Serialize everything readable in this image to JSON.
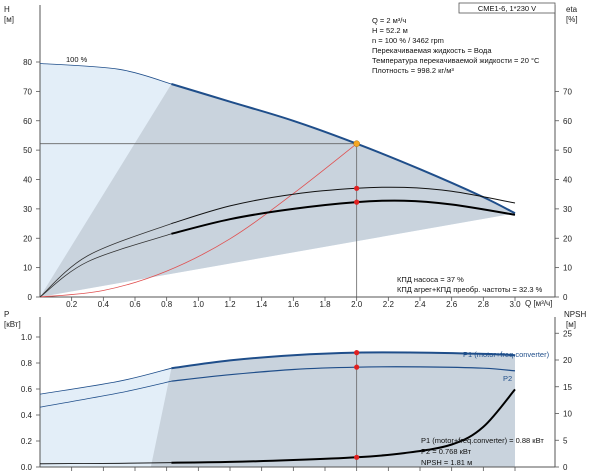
{
  "header": {
    "model_label": "CME1-6, 1*230 V"
  },
  "colors": {
    "light_region": "#e3eef8",
    "gray_region": "#c9d3dd",
    "curve_blue": "#1f4e8a",
    "system_curve": "#e05050",
    "op_point": "#f5a623",
    "point_red": "#e02020",
    "axis": "#555555"
  },
  "info": {
    "lines": [
      "Q = 2 м³/ч",
      "H = 52.2 м",
      "n = 100 % / 3462 rpm",
      "Перекачиваемая жидкость = Вода",
      "Температура перекачиваемой жидкости = 20 °C",
      "Плотность = 998.2 кг/м³"
    ]
  },
  "upper_notes": [
    "КПД насоса = 37 %",
    "КПД агрег+КПД преобр. частоты = 32.3 %"
  ],
  "lower_notes": [
    "P1 (motor+freq.converter) = 0.88 кВт",
    "P2 = 0.768 кВт",
    "NPSH = 1.81 м"
  ],
  "speed_label": "100 %",
  "chart_data": [
    {
      "type": "line",
      "title": "",
      "xlabel": "Q [м³/ч]",
      "ylabel_left": "H [м]",
      "ylabel_right": "eta [%]",
      "xlim": [
        0,
        3.1
      ],
      "ylim": [
        0,
        85
      ],
      "x_ticks": [
        "0.2",
        "0.4",
        "0.6",
        "0.8",
        "1.0",
        "1.2",
        "1.4",
        "1.6",
        "1.8",
        "2.0",
        "2.2",
        "2.4",
        "2.6",
        "2.8",
        "3.0"
      ],
      "y_ticks": [
        "0",
        "10",
        "20",
        "30",
        "40",
        "50",
        "60",
        "70",
        "80"
      ],
      "y2_ticks": [
        "0",
        "10",
        "20",
        "30",
        "40",
        "50",
        "60",
        "70"
      ],
      "x_tick_values": [
        0.2,
        0.4,
        0.6,
        0.8,
        1.0,
        1.2,
        1.4,
        1.6,
        1.8,
        2.0,
        2.2,
        2.4,
        2.6,
        2.8,
        3.0
      ],
      "y_tick_values": [
        0,
        10,
        20,
        30,
        40,
        50,
        60,
        70,
        80
      ],
      "series": [
        {
          "name": "H 100 %",
          "x": [
            0,
            0.5,
            0.83,
            1.2,
            1.6,
            2.0,
            2.4,
            2.8,
            3.0
          ],
          "y": [
            79.5,
            77.5,
            72.5,
            66.5,
            60,
            52.2,
            43.5,
            34,
            28.5
          ]
        },
        {
          "name": "КПД агрег",
          "x": [
            0,
            0.3,
            0.83,
            1.2,
            1.6,
            2.0,
            2.3,
            2.6,
            3.0
          ],
          "y": [
            0,
            12,
            21.5,
            26.5,
            30,
            32.3,
            32.8,
            31.5,
            28
          ]
        },
        {
          "name": "КПД насоса",
          "x": [
            0,
            0.3,
            0.83,
            1.2,
            1.6,
            2.0,
            2.3,
            2.6,
            3.0
          ],
          "y": [
            0,
            14,
            25,
            31,
            35,
            37,
            37.3,
            36,
            32
          ]
        },
        {
          "name": "system",
          "x": [
            0,
            0.4,
            0.8,
            1.2,
            1.6,
            2.0
          ],
          "y": [
            0,
            2.2,
            8.8,
            19.8,
            35.2,
            52.2
          ]
        }
      ],
      "operating_point": {
        "x": 2.0,
        "y": 52.2
      },
      "marker_points": [
        {
          "x": 2.0,
          "y": 37
        },
        {
          "x": 2.0,
          "y": 32.3
        }
      ]
    },
    {
      "type": "line",
      "title": "",
      "ylabel_left": "P [кВт]",
      "ylabel_right": "NPSH [м]",
      "xlim": [
        0,
        3.1
      ],
      "ylim": [
        0,
        1.0
      ],
      "y2lim": [
        0,
        26
      ],
      "y_ticks": [
        "0.0",
        "0.2",
        "0.4",
        "0.6",
        "0.8",
        "1.0"
      ],
      "y_tick_values": [
        0.0,
        0.2,
        0.4,
        0.6,
        0.8,
        1.0
      ],
      "y2_ticks": [
        "0",
        "5",
        "10",
        "15",
        "20",
        "25"
      ],
      "y2_tick_values": [
        0,
        5,
        10,
        15,
        20,
        25
      ],
      "series": [
        {
          "name": "P1 (motor+freq.converter)",
          "x": [
            0,
            0.5,
            0.83,
            1.2,
            1.6,
            2.0,
            2.4,
            2.8,
            3.0
          ],
          "y": [
            0.56,
            0.66,
            0.76,
            0.82,
            0.86,
            0.88,
            0.88,
            0.87,
            0.86
          ]
        },
        {
          "name": "P2",
          "x": [
            0,
            0.5,
            0.83,
            1.2,
            1.6,
            2.0,
            2.4,
            2.8,
            3.0
          ],
          "y": [
            0.46,
            0.57,
            0.66,
            0.71,
            0.75,
            0.768,
            0.77,
            0.76,
            0.74
          ]
        },
        {
          "name": "NPSH",
          "x": [
            0,
            0.5,
            0.83,
            1.2,
            1.6,
            2.0,
            2.3,
            2.6,
            2.8,
            3.0
          ],
          "y": [
            0.6,
            0.7,
            0.8,
            0.95,
            1.3,
            1.81,
            2.6,
            4.2,
            7.5,
            14.5
          ]
        }
      ],
      "marker_points_left": [
        {
          "x": 2.0,
          "y": 0.88
        },
        {
          "x": 2.0,
          "y": 0.768
        }
      ],
      "marker_points_right": [
        {
          "x": 2.0,
          "y": 1.81
        }
      ]
    }
  ]
}
